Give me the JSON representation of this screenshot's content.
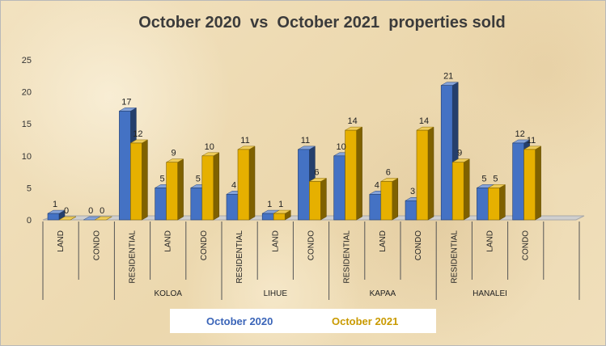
{
  "chart_data": {
    "type": "bar",
    "title": "October 2020  vs  October 2021  properties sold",
    "ylim": [
      0,
      25
    ],
    "yticks": [
      0,
      5,
      10,
      15,
      20,
      25
    ],
    "grid": false,
    "legend_position": "bottom",
    "groups": [
      {
        "label": "",
        "span": 2
      },
      {
        "label": "KOLOA",
        "span": 3
      },
      {
        "label": "LIHUE",
        "span": 3
      },
      {
        "label": "KAPAA",
        "span": 3
      },
      {
        "label": "HANALEI",
        "span": 3
      }
    ],
    "categories": [
      "LAND",
      "CONDO",
      "RESIDENTIAL",
      "LAND",
      "CONDO",
      "RESIDENTIAL",
      "LAND",
      "CONDO",
      "RESIDENTIAL",
      "LAND",
      "CONDO",
      "RESIDENTIAL",
      "LAND",
      "CONDO"
    ],
    "series": [
      {
        "name": "October 2020",
        "color": "#4472c4",
        "values": [
          1,
          0,
          17,
          5,
          5,
          4,
          1,
          11,
          10,
          4,
          3,
          21,
          5,
          12
        ]
      },
      {
        "name": "October 2021",
        "color": "#e6b000",
        "values": [
          0,
          0,
          12,
          9,
          10,
          11,
          1,
          6,
          14,
          6,
          14,
          9,
          5,
          11
        ]
      }
    ]
  }
}
